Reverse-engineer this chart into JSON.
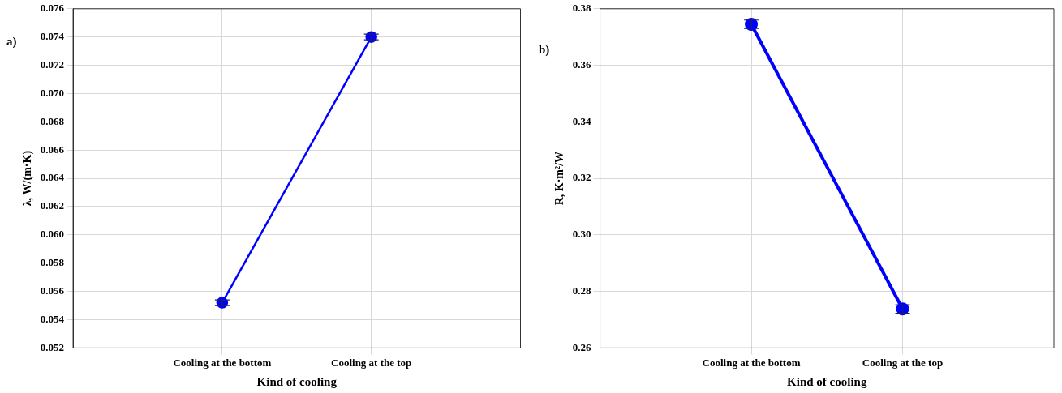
{
  "chart_data": [
    {
      "type": "line",
      "xlabel": "Kind of cooling",
      "ylabel": "λ, W/(m·K)",
      "annotations": [
        "a)"
      ],
      "categories": [
        "Cooling at the bottom",
        "Cooling at the top"
      ],
      "series": [
        {
          "color": "#0000ff",
          "values": [
            0.0552,
            0.074
          ],
          "errors": [
            0.0002,
            0.0002
          ]
        }
      ],
      "ylim": [
        0.052,
        0.076
      ],
      "yticks": [
        {
          "value": 0.052,
          "label": "0.052"
        },
        {
          "value": 0.054,
          "label": "0.054"
        },
        {
          "value": 0.056,
          "label": "0.056"
        },
        {
          "value": 0.058,
          "label": "0.058"
        },
        {
          "value": 0.06,
          "label": "0.060"
        },
        {
          "value": 0.062,
          "label": "0.062"
        },
        {
          "value": 0.064,
          "label": "0.064"
        },
        {
          "value": 0.066,
          "label": "0.066"
        },
        {
          "value": 0.068,
          "label": "0.068"
        },
        {
          "value": 0.07,
          "label": "0.070"
        },
        {
          "value": 0.072,
          "label": "0.072"
        },
        {
          "value": 0.074,
          "label": "0.074"
        },
        {
          "value": 0.076,
          "label": "0.076"
        }
      ],
      "grid": true,
      "legend": false,
      "marker": "circle",
      "line_style": "solid"
    },
    {
      "type": "line",
      "xlabel": "Kind of cooling",
      "ylabel": "R, K·m²/W",
      "annotations": [
        "b)"
      ],
      "categories": [
        "Cooling at the bottom",
        "Cooling at the top"
      ],
      "series": [
        {
          "color": "#0000ff",
          "values": [
            0.3745,
            0.2738
          ],
          "errors": [
            0.0015,
            0.0015
          ]
        }
      ],
      "ylim": [
        0.26,
        0.38
      ],
      "yticks": [
        {
          "value": 0.26,
          "label": "0.26"
        },
        {
          "value": 0.28,
          "label": "0.28"
        },
        {
          "value": 0.3,
          "label": "0.30"
        },
        {
          "value": 0.32,
          "label": "0.32"
        },
        {
          "value": 0.34,
          "label": "0.34"
        },
        {
          "value": 0.36,
          "label": "0.36"
        },
        {
          "value": 0.38,
          "label": "0.38"
        }
      ],
      "grid": true,
      "legend": false,
      "marker": "circle",
      "line_style": "solid"
    }
  ]
}
